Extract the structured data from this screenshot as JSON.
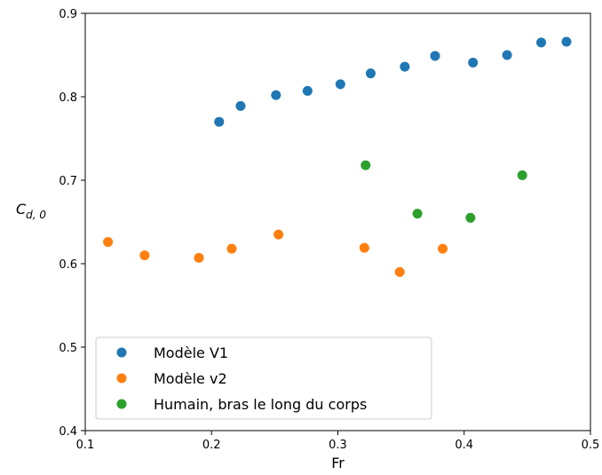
{
  "chart_data": {
    "type": "scatter",
    "xlabel": "Fr",
    "ylabel": {
      "main": "C",
      "sub": "d, 0"
    },
    "xlim": [
      0.1,
      0.5
    ],
    "ylim": [
      0.4,
      0.9
    ],
    "xticks": [
      "0.1",
      "0.2",
      "0.3",
      "0.4",
      "0.5"
    ],
    "yticks": [
      "0.4",
      "0.5",
      "0.6",
      "0.7",
      "0.8",
      "0.9"
    ],
    "grid": false,
    "legend_position": "lower-left",
    "series": [
      {
        "name": "Modèle V1",
        "color": "#1f77b4",
        "x": [
          0.206,
          0.223,
          0.251,
          0.276,
          0.302,
          0.326,
          0.353,
          0.377,
          0.407,
          0.434,
          0.461,
          0.481
        ],
        "y": [
          0.77,
          0.789,
          0.802,
          0.807,
          0.815,
          0.828,
          0.836,
          0.849,
          0.841,
          0.85,
          0.865,
          0.866
        ]
      },
      {
        "name": "Modèle v2",
        "color": "#ff7f0e",
        "x": [
          0.118,
          0.147,
          0.19,
          0.216,
          0.253,
          0.321,
          0.349,
          0.383
        ],
        "y": [
          0.626,
          0.61,
          0.607,
          0.618,
          0.635,
          0.619,
          0.59,
          0.618
        ]
      },
      {
        "name": "Humain, bras le long du corps",
        "color": "#2ca02c",
        "x": [
          0.322,
          0.363,
          0.405,
          0.446
        ],
        "y": [
          0.718,
          0.66,
          0.655,
          0.706
        ]
      }
    ]
  }
}
